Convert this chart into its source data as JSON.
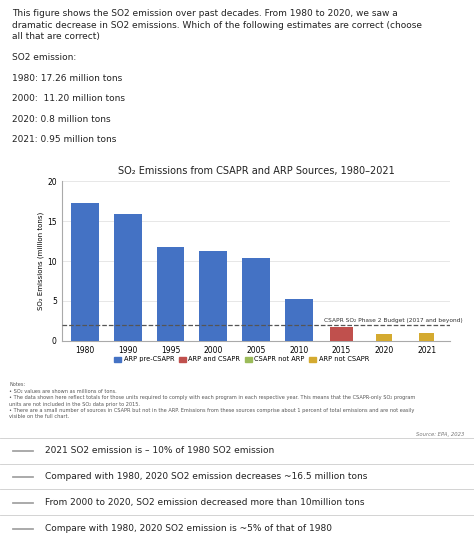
{
  "title": "SO₂ Emissions from CSAPR and ARP Sources, 1980–2021",
  "ylabel": "SO₂ Emissions (million tons)",
  "years": [
    1980,
    1990,
    1995,
    2000,
    2005,
    2010,
    2015,
    2020,
    2021
  ],
  "blue_bars": [
    17.26,
    15.9,
    11.8,
    11.2,
    10.4,
    5.3,
    0,
    0,
    0
  ],
  "orange_bars": [
    0,
    0,
    0,
    0,
    0,
    0,
    1.7,
    0,
    0
  ],
  "green_bars": [
    0,
    0,
    0,
    0,
    0,
    0,
    0,
    0,
    0
  ],
  "yellow_bars": [
    0,
    0,
    0,
    0,
    0,
    0,
    0,
    0.8,
    0.95
  ],
  "dashed_line_y": 2.0,
  "dashed_line_label": "CSAPR SO₂ Phase 2 Budget (2017 and beyond)",
  "ylim": [
    0,
    20
  ],
  "yticks": [
    0,
    5,
    10,
    15,
    20
  ],
  "bar_color_blue": "#4472C4",
  "bar_color_orange": "#C0504D",
  "bar_color_green": "#9BBB59",
  "bar_color_yellow": "#D4AA30",
  "legend_labels": [
    "ARP pre-CSAPR",
    "ARP and CSAPR",
    "CSAPR not ARP",
    "ARP not CSAPR"
  ],
  "notes_line1": "Notes:",
  "notes_line2": "• SO₂ values are shown as millions of tons.",
  "notes_line3": "• The data shown here reflect totals for those units required to comply with each program in each respective year. This means that the CSAPR-only SO₂ program",
  "notes_line4": "units are not included in the SO₂ data prior to 2015.",
  "notes_line5": "• There are a small number of sources in CSAPR but not in the ARP. Emissions from these sources comprise about 1 percent of total emissions and are not easily",
  "notes_line6": "visible on the full chart.",
  "source_text": "Source: EPA, 2023",
  "background_color": "#FFFFFF",
  "header_line1": "This figure shows the SO2 emission over past decades. From 1980 to 2020, we saw a",
  "header_line2": "dramatic decrease in SO2 emissions. Which of the following estimates are correct (choose",
  "header_line3": "all that are correct)",
  "label_so2": "SO2 emission:",
  "label_1980": "1980: 17.26 million tons",
  "label_2000": "2000:  11.20 million tons",
  "label_2020": "2020: 0.8 million tons",
  "label_2021": "2021: 0.95 million tons",
  "checkboxes": [
    "2021 SO2 emission is – 10% of 1980 SO2 emission",
    "Compared with 1980, 2020 SO2 emission decreases ~16.5 million tons",
    "From 2000 to 2020, SO2 emission decreased more than 10million tons",
    "Compare with 1980, 2020 SO2 emission is ~5% of that of 1980"
  ]
}
